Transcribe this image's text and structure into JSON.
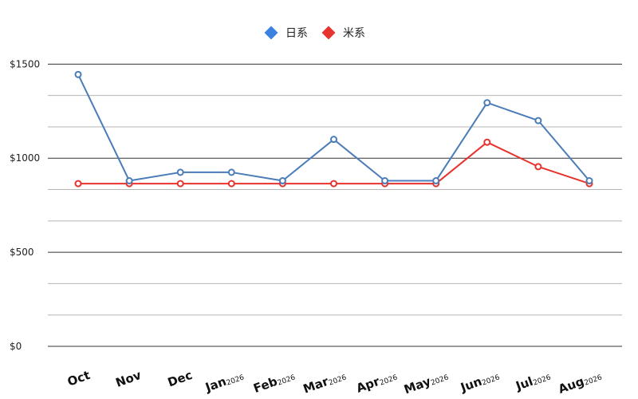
{
  "chart_data": {
    "type": "line",
    "categories": [
      "Oct",
      "Nov",
      "Dec",
      "Jan",
      "Feb",
      "Mar",
      "Apr",
      "May",
      "Jun",
      "Jul",
      "Aug"
    ],
    "category_suffixes": [
      "",
      "",
      "",
      "2026",
      "2026",
      "2026",
      "2026",
      "2026",
      "2026",
      "2026",
      "2026"
    ],
    "series": [
      {
        "name": "日系",
        "color": "#4a7cb8",
        "legend_color": "#3b82e0",
        "values": [
          1445,
          880,
          925,
          925,
          880,
          1100,
          880,
          880,
          1295,
          1200,
          880
        ]
      },
      {
        "name": "米系",
        "color": "#e8322d",
        "legend_color": "#e8322d",
        "values": [
          865,
          865,
          865,
          865,
          865,
          865,
          865,
          865,
          1085,
          955,
          865
        ]
      }
    ],
    "ylim": [
      0,
      1650
    ],
    "yticks": [
      {
        "value": 0,
        "label": "$0"
      },
      {
        "value": 500,
        "label": "$500"
      },
      {
        "value": 1000,
        "label": "$1000"
      },
      {
        "value": 1500,
        "label": "$1500"
      }
    ],
    "minor_gridlines": [
      166.67,
      333.33,
      666.67,
      833.33,
      1166.67,
      1333.33
    ],
    "grid": true,
    "legend_position": "top-center",
    "xlabel": "",
    "ylabel": "",
    "title": ""
  }
}
